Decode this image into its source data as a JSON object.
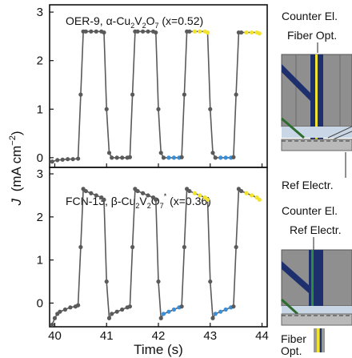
{
  "figure": {
    "ylabel_main": "J",
    "ylabel_unit": "(mA cm",
    "ylabel_exp": "−2",
    "ylabel_close": ")",
    "xlabel": "Time (s)",
    "xticks": [
      "40",
      "41",
      "42",
      "43",
      "44"
    ],
    "colors": {
      "trace": "#5a5a5a",
      "blue": "#3b8fd9",
      "yellow": "#f2e32e",
      "frame": "#111111"
    }
  },
  "chart_data": [
    {
      "type": "line",
      "panel_title_a": "OER-9, α-Cu",
      "panel_title_sub1": "2",
      "panel_title_b": "V",
      "panel_title_sub2": "2",
      "panel_title_c": "O",
      "panel_title_sub3": "7",
      "panel_title_d": " (x=0.52)",
      "xlim": [
        39.9,
        44.1
      ],
      "ylim": [
        -0.2,
        3.15
      ],
      "yticks": [
        0,
        1,
        2,
        3
      ],
      "x": [
        39.95,
        40.05,
        40.15,
        40.25,
        40.35,
        40.45,
        40.5,
        40.55,
        40.6,
        40.7,
        40.8,
        40.9,
        40.95,
        41.0,
        41.05,
        41.1,
        41.2,
        41.3,
        41.4,
        41.45,
        41.5,
        41.55,
        41.6,
        41.7,
        41.8,
        41.9,
        41.95,
        42.0,
        42.05,
        42.1,
        42.2,
        42.3,
        42.4,
        42.45,
        42.5,
        42.55,
        42.6,
        42.7,
        42.8,
        42.9,
        42.95,
        43.0,
        43.05,
        43.1,
        43.2,
        43.3,
        43.4,
        43.45,
        43.5,
        43.55,
        43.6,
        43.7,
        43.8,
        43.9,
        43.95
      ],
      "y": [
        -0.08,
        -0.05,
        -0.04,
        -0.03,
        -0.03,
        -0.02,
        1.3,
        2.6,
        2.6,
        2.6,
        2.6,
        2.6,
        2.58,
        1.0,
        0.1,
        0.0,
        0.0,
        0.0,
        0.0,
        0.01,
        1.3,
        2.6,
        2.6,
        2.6,
        2.6,
        2.6,
        2.58,
        1.0,
        0.1,
        0.0,
        0.0,
        0.0,
        0.0,
        0.01,
        1.3,
        2.6,
        2.6,
        2.6,
        2.6,
        2.6,
        2.58,
        1.0,
        0.1,
        0.0,
        0.0,
        0.0,
        0.0,
        0.01,
        1.3,
        2.58,
        2.58,
        2.58,
        2.58,
        2.58,
        2.56
      ],
      "highlights": [
        {
          "color": "blue",
          "x0": 42.15,
          "x1": 42.4
        },
        {
          "color": "yellow",
          "x0": 42.7,
          "x1": 42.95
        },
        {
          "color": "blue",
          "x0": 43.15,
          "x1": 43.4
        },
        {
          "color": "yellow",
          "x0": 43.7,
          "x1": 43.95
        }
      ]
    },
    {
      "type": "line",
      "panel_title_a": "FCN-13, β-Cu",
      "panel_title_sub1": "2",
      "panel_title_b": "V",
      "panel_title_sub2": "2",
      "panel_title_c": "O",
      "panel_title_sub3": "7",
      "panel_title_sup": "*",
      "panel_title_d": " (x=0.36)",
      "xlim": [
        39.9,
        44.1
      ],
      "ylim": [
        -0.55,
        3.15
      ],
      "yticks": [
        0,
        1,
        2,
        3
      ],
      "x": [
        39.95,
        40.0,
        40.05,
        40.1,
        40.2,
        40.3,
        40.4,
        40.45,
        40.5,
        40.55,
        40.6,
        40.7,
        40.8,
        40.9,
        40.95,
        41.0,
        41.05,
        41.1,
        41.2,
        41.3,
        41.4,
        41.45,
        41.5,
        41.55,
        41.6,
        41.7,
        41.8,
        41.9,
        41.95,
        42.0,
        42.05,
        42.1,
        42.2,
        42.3,
        42.4,
        42.45,
        42.5,
        42.55,
        42.6,
        42.7,
        42.8,
        42.9,
        42.95,
        43.0,
        43.05,
        43.1,
        43.2,
        43.3,
        43.4,
        43.45,
        43.5,
        43.55,
        43.6,
        43.7,
        43.8,
        43.9,
        43.95
      ],
      "y": [
        -0.5,
        -0.35,
        -0.25,
        -0.2,
        -0.15,
        -0.1,
        -0.08,
        -0.05,
        1.3,
        2.65,
        2.6,
        2.55,
        2.5,
        2.45,
        2.4,
        0.5,
        -0.35,
        -0.25,
        -0.2,
        -0.15,
        -0.1,
        -0.08,
        1.3,
        2.65,
        2.6,
        2.55,
        2.5,
        2.45,
        2.4,
        0.5,
        -0.35,
        -0.25,
        -0.2,
        -0.15,
        -0.1,
        -0.08,
        1.3,
        2.65,
        2.6,
        2.55,
        2.5,
        2.45,
        2.4,
        0.5,
        -0.35,
        -0.25,
        -0.2,
        -0.15,
        -0.1,
        -0.08,
        1.3,
        2.65,
        2.6,
        2.55,
        2.5,
        2.45,
        2.4
      ],
      "highlights": [
        {
          "color": "blue",
          "x0": 42.1,
          "x1": 42.4
        },
        {
          "color": "yellow",
          "x0": 42.7,
          "x1": 42.95
        },
        {
          "color": "blue",
          "x0": 43.1,
          "x1": 43.4
        },
        {
          "color": "yellow",
          "x0": 43.7,
          "x1": 43.95
        }
      ]
    }
  ],
  "schematic": {
    "top": {
      "counter": "Counter El.",
      "fiber": "Fiber Opt.",
      "ref": "Ref Electr."
    },
    "bottom": {
      "counter": "Counter El.",
      "ref": "Ref Electr.",
      "fiber1": "Fiber",
      "fiber2": "Opt."
    }
  }
}
